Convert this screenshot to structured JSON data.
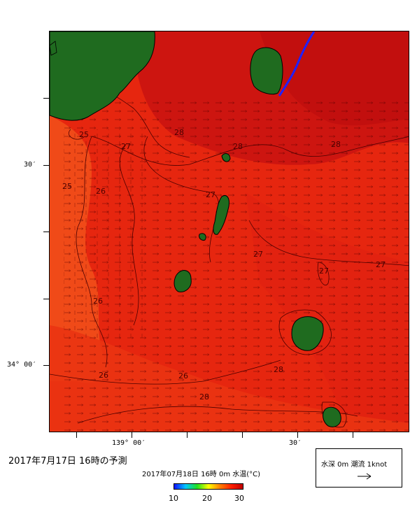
{
  "map": {
    "lat_labels": [
      "30′",
      "34° 00′"
    ],
    "lon_labels": [
      "139° 00′",
      "30′"
    ],
    "contour_labels": [
      "25",
      "27",
      "28",
      "28",
      "25",
      "26",
      "27",
      "28",
      "27",
      "27",
      "27",
      "26",
      "26",
      "26",
      "28",
      "28"
    ],
    "colors": {
      "land": "#1f6b1f",
      "sea_warm": "#e82a10",
      "sea_hot": "#cf1010",
      "sea_cool": "#f2521a",
      "track": "#2020ff"
    }
  },
  "title": "2017年7月17日  16時の予測",
  "subtitle": "2017年07月18日 16時 0m 水温(°C)",
  "legend": {
    "label": "水深 0m 潮流 1knot"
  },
  "colorbar": {
    "ticks": [
      "10",
      "20",
      "30"
    ],
    "colors": [
      "#1010ff",
      "#00c8ff",
      "#20e020",
      "#ffff00",
      "#ff8000",
      "#ff2000",
      "#c00000"
    ]
  }
}
